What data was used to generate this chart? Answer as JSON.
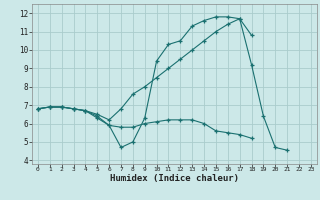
{
  "xlabel": "Humidex (Indice chaleur)",
  "background_color": "#cce8e8",
  "grid_color": "#aacccc",
  "line_color": "#1a7070",
  "xlim": [
    -0.5,
    23.5
  ],
  "ylim": [
    3.8,
    12.5
  ],
  "xticks": [
    0,
    1,
    2,
    3,
    4,
    5,
    6,
    7,
    8,
    9,
    10,
    11,
    12,
    13,
    14,
    15,
    16,
    17,
    18,
    19,
    20,
    21,
    22,
    23
  ],
  "yticks": [
    4,
    5,
    6,
    7,
    8,
    9,
    10,
    11,
    12
  ],
  "curve1_x": [
    0,
    1,
    2,
    3,
    4,
    5,
    6,
    7,
    8,
    9,
    10,
    11,
    12,
    13,
    14,
    15,
    16,
    17,
    18,
    19,
    20,
    21
  ],
  "curve1_y": [
    6.8,
    6.9,
    6.9,
    6.8,
    6.7,
    6.4,
    5.9,
    4.7,
    5.0,
    6.3,
    9.4,
    10.3,
    10.5,
    11.3,
    11.6,
    11.8,
    11.8,
    11.7,
    9.2,
    6.4,
    4.7,
    4.55
  ],
  "curve2_x": [
    0,
    1,
    2,
    3,
    4,
    5,
    6,
    7,
    8,
    9,
    10,
    11,
    12,
    13,
    14,
    15,
    16,
    17,
    18
  ],
  "curve2_y": [
    6.8,
    6.9,
    6.9,
    6.8,
    6.7,
    6.5,
    6.2,
    6.8,
    7.6,
    8.0,
    8.5,
    9.0,
    9.5,
    10.0,
    10.5,
    11.0,
    11.4,
    11.7,
    10.8
  ],
  "curve3_x": [
    0,
    1,
    2,
    3,
    4,
    5,
    6,
    7,
    8,
    9,
    10,
    11,
    12,
    13,
    14,
    15,
    16,
    17,
    18
  ],
  "curve3_y": [
    6.8,
    6.9,
    6.9,
    6.8,
    6.7,
    6.3,
    5.9,
    5.8,
    5.8,
    6.0,
    6.1,
    6.2,
    6.2,
    6.2,
    6.0,
    5.6,
    5.5,
    5.4,
    5.2
  ]
}
